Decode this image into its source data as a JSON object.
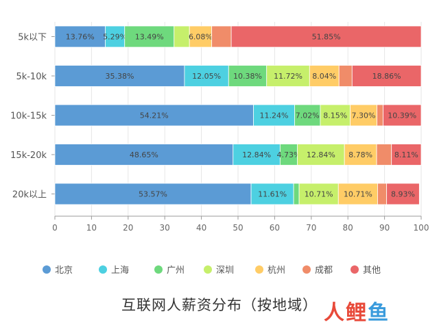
{
  "chart_data": {
    "type": "bar",
    "orientation": "horizontal",
    "stacked": true,
    "title": "互联网人薪资分布（按地域）",
    "categories": [
      "5k以下",
      "5k-10k",
      "10k-15k",
      "15k-20k",
      "20k以上"
    ],
    "series": [
      {
        "name": "北京",
        "color": "#5b9bd5",
        "values": [
          13.76,
          35.38,
          54.21,
          48.65,
          53.57
        ]
      },
      {
        "name": "上海",
        "color": "#4dd0e1",
        "values": [
          5.29,
          12.05,
          11.24,
          12.84,
          11.61
        ]
      },
      {
        "name": "广州",
        "color": "#6ed97d",
        "values": [
          13.49,
          10.38,
          7.02,
          4.73,
          1.5
        ]
      },
      {
        "name": "深圳",
        "color": "#c6ef6b",
        "values": [
          4.2,
          11.72,
          8.15,
          12.84,
          10.71
        ]
      },
      {
        "name": "杭州",
        "color": "#ffcc66",
        "values": [
          6.08,
          8.04,
          7.3,
          8.78,
          10.71
        ]
      },
      {
        "name": "成都",
        "color": "#f08c69",
        "values": [
          5.33,
          3.57,
          1.69,
          4.05,
          2.47
        ]
      },
      {
        "name": "其他",
        "color": "#ea6668",
        "values": [
          51.85,
          18.86,
          10.39,
          8.11,
          8.93
        ]
      }
    ],
    "data_labels": [
      [
        "13.76%",
        "5.29%",
        "13.49%",
        "",
        "6.08%",
        "",
        "51.85%"
      ],
      [
        "35.38%",
        "12.05%",
        "10.38%",
        "11.72%",
        "8.04%",
        "",
        "18.86%"
      ],
      [
        "54.21%",
        "11.24%",
        "7.02%",
        "8.15%",
        "7.30%",
        "",
        "10.39%"
      ],
      [
        "48.65%",
        "12.84%",
        "4.73%",
        "12.84%",
        "8.78%",
        "",
        "8.11%"
      ],
      [
        "53.57%",
        "11.61%",
        "",
        "10.71%",
        "10.71%",
        "",
        "8.93%"
      ]
    ],
    "xlim": [
      0,
      100
    ],
    "xticks": [
      0,
      10,
      20,
      30,
      40,
      50,
      60,
      70,
      80,
      90,
      100
    ],
    "grid": true,
    "legend_position": "bottom"
  },
  "watermark": {
    "part1": "人",
    "part2": "鲤",
    "part3": "鱼"
  }
}
